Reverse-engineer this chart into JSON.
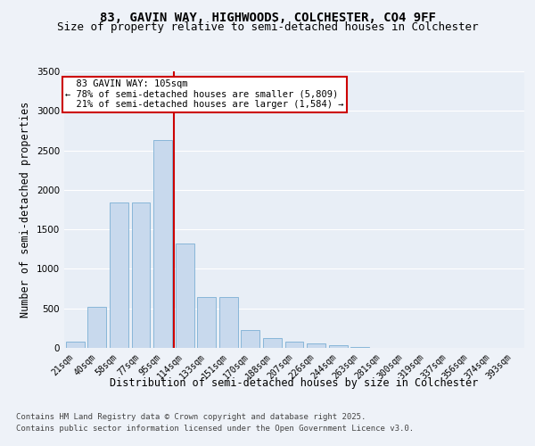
{
  "title_line1": "83, GAVIN WAY, HIGHWOODS, COLCHESTER, CO4 9FF",
  "title_line2": "Size of property relative to semi-detached houses in Colchester",
  "xlabel": "Distribution of semi-detached houses by size in Colchester",
  "ylabel": "Number of semi-detached properties",
  "categories": [
    "21sqm",
    "40sqm",
    "58sqm",
    "77sqm",
    "95sqm",
    "114sqm",
    "133sqm",
    "151sqm",
    "170sqm",
    "188sqm",
    "207sqm",
    "226sqm",
    "244sqm",
    "263sqm",
    "281sqm",
    "300sqm",
    "319sqm",
    "337sqm",
    "356sqm",
    "374sqm",
    "393sqm"
  ],
  "values": [
    80,
    520,
    1840,
    1840,
    2630,
    1320,
    640,
    640,
    230,
    120,
    80,
    55,
    30,
    10,
    5,
    3,
    2,
    1,
    1,
    0,
    0
  ],
  "bar_color": "#c8d9ed",
  "bar_edge_color": "#7bafd4",
  "ylim": [
    0,
    3500
  ],
  "yticks": [
    0,
    500,
    1000,
    1500,
    2000,
    2500,
    3000,
    3500
  ],
  "property_label": "83 GAVIN WAY: 105sqm",
  "pct_smaller": "78% of semi-detached houses are smaller (5,809)",
  "pct_larger": "21% of semi-detached houses are larger (1,584)",
  "annotation_box_color": "#ffffff",
  "annotation_box_edge": "#cc0000",
  "red_line_color": "#cc0000",
  "footer_line1": "Contains HM Land Registry data © Crown copyright and database right 2025.",
  "footer_line2": "Contains public sector information licensed under the Open Government Licence v3.0.",
  "bg_color": "#eef2f8",
  "plot_bg_color": "#e8eef6",
  "grid_color": "#ffffff",
  "title_fontsize": 10,
  "subtitle_fontsize": 9,
  "axis_label_fontsize": 8.5,
  "tick_fontsize": 7.5,
  "footer_fontsize": 6.5,
  "annot_fontsize": 7.5
}
